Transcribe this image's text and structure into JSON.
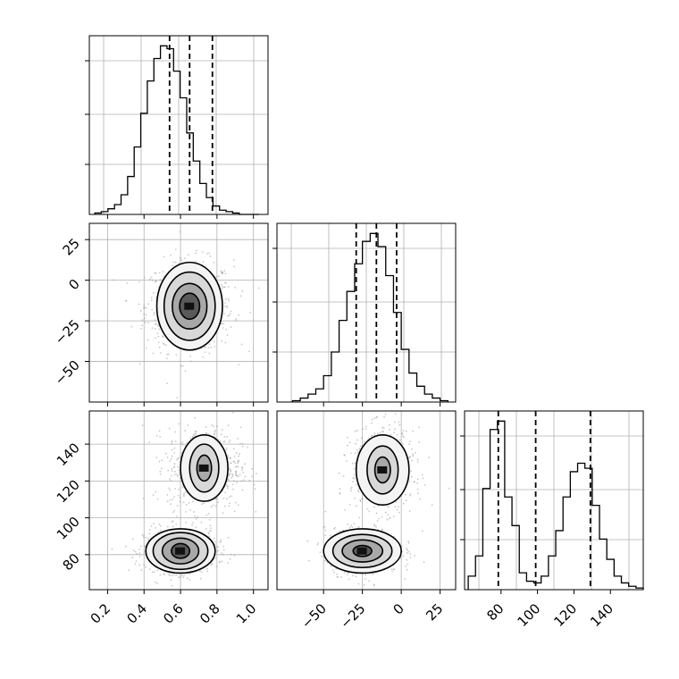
{
  "chart_data": [
    {
      "type": "histogram",
      "xlim": [
        0.1,
        1.08
      ],
      "grid": true,
      "quantile_lines": [
        0.54,
        0.65,
        0.775
      ],
      "bins": [
        0.13,
        0.166,
        0.202,
        0.238,
        0.274,
        0.31,
        0.346,
        0.382,
        0.418,
        0.454,
        0.49,
        0.526,
        0.562,
        0.598,
        0.634,
        0.67,
        0.706,
        0.742,
        0.778,
        0.814,
        0.85,
        0.886,
        0.922,
        0.958,
        0.994,
        1.03
      ],
      "counts": [
        1,
        2,
        4,
        7,
        14,
        27,
        48,
        72,
        95,
        111,
        120,
        118,
        102,
        83,
        58,
        38,
        22,
        12,
        6,
        3,
        2,
        1,
        0,
        0,
        0
      ]
    },
    {
      "type": "histogram",
      "xlim": [
        -80,
        35
      ],
      "grid": true,
      "quantile_lines": [
        -29,
        -16,
        -3
      ],
      "bins": [
        -70,
        -65,
        -60,
        -55,
        -50,
        -45,
        -40,
        -35,
        -30,
        -25,
        -20,
        -15,
        -10,
        -5,
        0,
        5,
        10,
        15,
        20,
        25,
        30
      ],
      "counts": [
        1,
        3,
        6,
        10,
        20,
        38,
        62,
        84,
        105,
        122,
        128,
        118,
        96,
        68,
        40,
        22,
        12,
        6,
        3,
        1
      ]
    },
    {
      "type": "histogram",
      "xlim": [
        60,
        158
      ],
      "grid": true,
      "quantile_lines": [
        78.5,
        99,
        129
      ],
      "bins": [
        62,
        66,
        70,
        74,
        78,
        82,
        86,
        90,
        94,
        98,
        102,
        106,
        110,
        114,
        118,
        122,
        126,
        130,
        134,
        138,
        142,
        146,
        150,
        154,
        158
      ],
      "counts": [
        8,
        20,
        60,
        95,
        100,
        55,
        38,
        10,
        5,
        4,
        8,
        20,
        35,
        55,
        70,
        75,
        72,
        50,
        30,
        18,
        8,
        4,
        2,
        1
      ]
    },
    {
      "type": "scatter",
      "xlim": [
        0.1,
        1.08
      ],
      "ylim": [
        -75,
        35
      ],
      "xticks": [
        0.2,
        0.4,
        0.6,
        0.8,
        1.0
      ],
      "yticks": [
        25,
        0,
        -25,
        -50
      ],
      "grid": true,
      "blobs": [
        {
          "x": 0.65,
          "y": -16,
          "sx": 0.12,
          "sy": 14
        }
      ],
      "contours": [
        {
          "x": 0.65,
          "y": -16,
          "rx": 0.055,
          "ry": 8
        },
        {
          "x": 0.65,
          "y": -16,
          "rx": 0.095,
          "ry": 14
        },
        {
          "x": 0.65,
          "y": -16,
          "rx": 0.14,
          "ry": 21
        },
        {
          "x": 0.65,
          "y": -16,
          "rx": 0.18,
          "ry": 27
        }
      ]
    },
    {
      "type": "scatter",
      "xlim": [
        0.1,
        1.08
      ],
      "ylim": [
        61,
        158
      ],
      "xticks": [
        0.2,
        0.4,
        0.6,
        0.8,
        1.0
      ],
      "yticks": [
        140,
        120,
        100,
        80
      ],
      "xticklabels": [
        "0.2",
        "0.4",
        "0.6",
        "0.8",
        "1.0"
      ],
      "yticklabels": [
        "140",
        "120",
        "100",
        "80"
      ],
      "grid": true,
      "blobs": [
        {
          "x": 0.6,
          "y": 82,
          "sx": 0.1,
          "sy": 6
        },
        {
          "x": 0.73,
          "y": 127,
          "sx": 0.1,
          "sy": 11
        }
      ],
      "contours": [
        {
          "x": 0.6,
          "y": 82,
          "rx": 0.05,
          "ry": 4
        },
        {
          "x": 0.6,
          "y": 82,
          "rx": 0.1,
          "ry": 7
        },
        {
          "x": 0.6,
          "y": 82,
          "rx": 0.15,
          "ry": 10
        },
        {
          "x": 0.6,
          "y": 82,
          "rx": 0.19,
          "ry": 12
        },
        {
          "x": 0.73,
          "y": 127,
          "rx": 0.04,
          "ry": 7
        },
        {
          "x": 0.73,
          "y": 127,
          "rx": 0.08,
          "ry": 13
        },
        {
          "x": 0.73,
          "y": 127,
          "rx": 0.13,
          "ry": 18
        }
      ]
    },
    {
      "type": "scatter",
      "xlim": [
        -80,
        35
      ],
      "ylim": [
        61,
        158
      ],
      "xticks": [
        -50,
        -25,
        0,
        25
      ],
      "xticklabels": [
        "−50",
        "−25",
        "0",
        "25"
      ],
      "grid": true,
      "blobs": [
        {
          "x": -25,
          "y": 82,
          "sx": 12,
          "sy": 6
        },
        {
          "x": -12,
          "y": 126,
          "sx": 10,
          "sy": 11
        }
      ],
      "contours": [
        {
          "x": -25,
          "y": 82,
          "rx": 6,
          "ry": 3
        },
        {
          "x": -25,
          "y": 82,
          "rx": 13,
          "ry": 6
        },
        {
          "x": -25,
          "y": 82,
          "rx": 19,
          "ry": 9
        },
        {
          "x": -25,
          "y": 82,
          "rx": 25,
          "ry": 12
        },
        {
          "x": -12,
          "y": 126,
          "rx": 5,
          "ry": 7
        },
        {
          "x": -12,
          "y": 126,
          "rx": 10,
          "ry": 13
        },
        {
          "x": -12,
          "y": 126,
          "rx": 17,
          "ry": 19
        }
      ]
    }
  ],
  "axis_tick_labels": {
    "bottom_left": [
      "0.2",
      "0.4",
      "0.6",
      "0.8",
      "1.0"
    ],
    "bottom_mid": [
      "−50",
      "−25",
      "0",
      "25"
    ],
    "bottom_right": [
      "80",
      "100",
      "120",
      "140"
    ],
    "left_mid": [
      "25",
      "0",
      "−25",
      "−50"
    ],
    "left_bottom": [
      "140",
      "120",
      "100",
      "80"
    ]
  }
}
